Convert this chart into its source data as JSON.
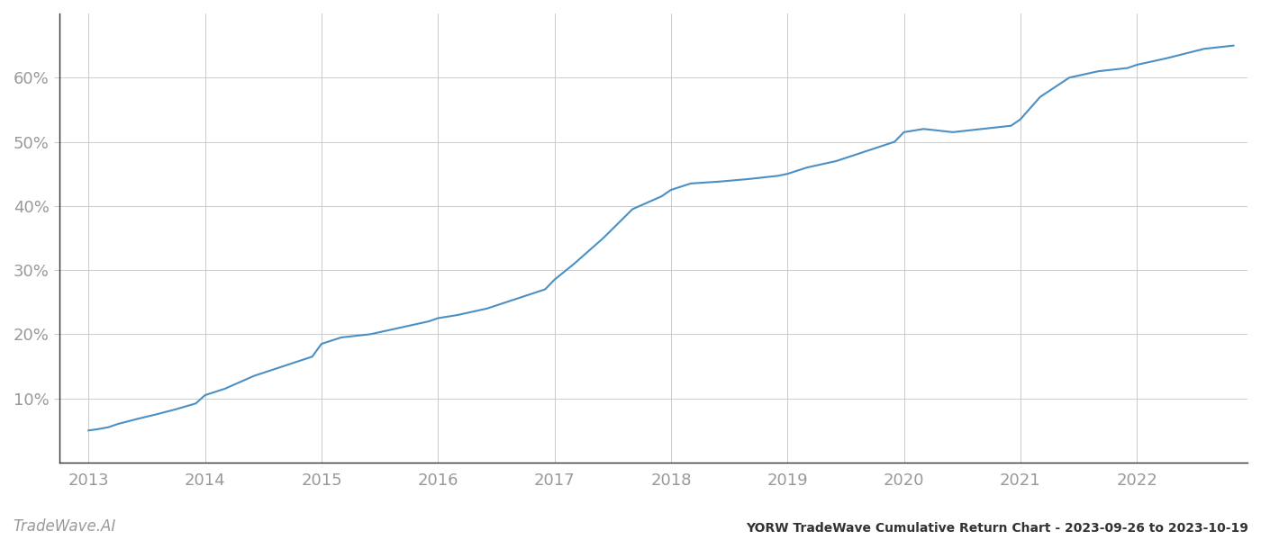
{
  "title": "YORW TradeWave Cumulative Return Chart - 2023-09-26 to 2023-10-19",
  "watermark": "TradeWave.AI",
  "line_color": "#4a90c4",
  "background_color": "#ffffff",
  "grid_color": "#cccccc",
  "x_years": [
    2013,
    2014,
    2015,
    2016,
    2017,
    2018,
    2019,
    2020,
    2021,
    2022
  ],
  "x_values": [
    2013.0,
    2013.08,
    2013.17,
    2013.25,
    2013.42,
    2013.58,
    2013.75,
    2013.92,
    2014.0,
    2014.17,
    2014.42,
    2014.67,
    2014.92,
    2015.0,
    2015.17,
    2015.42,
    2015.67,
    2015.92,
    2016.0,
    2016.17,
    2016.42,
    2016.67,
    2016.92,
    2017.0,
    2017.17,
    2017.42,
    2017.67,
    2017.92,
    2018.0,
    2018.17,
    2018.42,
    2018.67,
    2018.92,
    2019.0,
    2019.17,
    2019.42,
    2019.67,
    2019.92,
    2020.0,
    2020.17,
    2020.42,
    2020.67,
    2020.92,
    2021.0,
    2021.17,
    2021.42,
    2021.67,
    2021.92,
    2022.0,
    2022.25,
    2022.58,
    2022.83
  ],
  "y_values": [
    5.0,
    5.2,
    5.5,
    6.0,
    6.8,
    7.5,
    8.3,
    9.2,
    10.5,
    11.5,
    13.5,
    15.0,
    16.5,
    18.5,
    19.5,
    20.0,
    21.0,
    22.0,
    22.5,
    23.0,
    24.0,
    25.5,
    27.0,
    28.5,
    31.0,
    35.0,
    39.5,
    41.5,
    42.5,
    43.5,
    43.8,
    44.2,
    44.7,
    45.0,
    46.0,
    47.0,
    48.5,
    50.0,
    51.5,
    52.0,
    51.5,
    52.0,
    52.5,
    53.5,
    57.0,
    60.0,
    61.0,
    61.5,
    62.0,
    63.0,
    64.5,
    65.0
  ],
  "ylim": [
    0,
    70
  ],
  "yticks": [
    10,
    20,
    30,
    40,
    50,
    60
  ],
  "xlim": [
    2012.75,
    2022.95
  ],
  "title_fontsize": 10,
  "tick_fontsize": 13,
  "watermark_fontsize": 12,
  "spine_color": "#333333"
}
